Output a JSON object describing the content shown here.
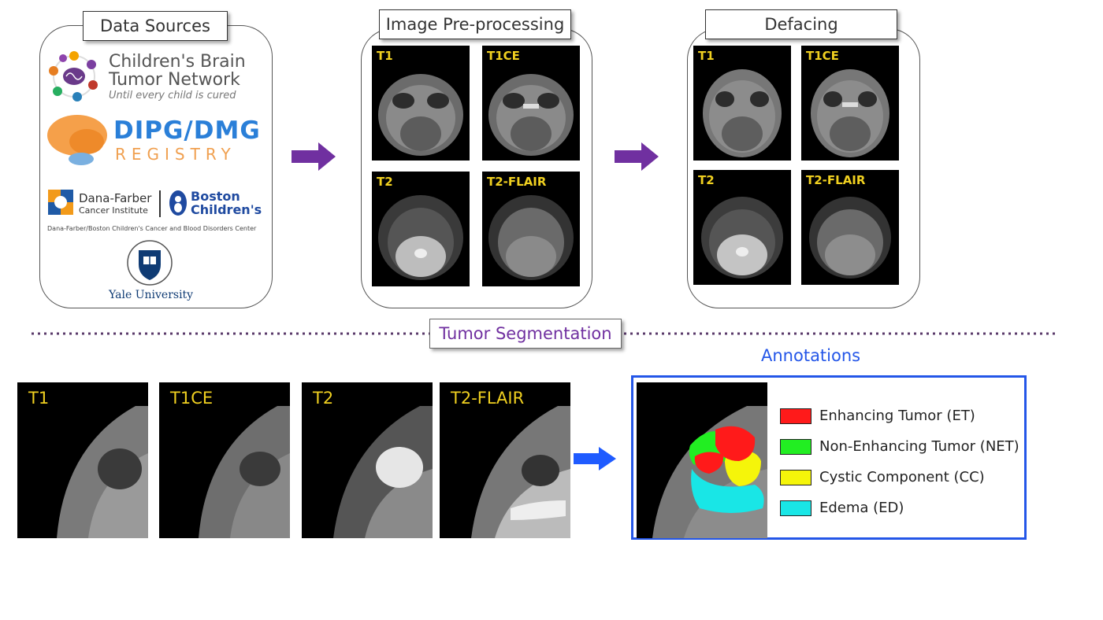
{
  "sections": {
    "data_sources": "Data Sources",
    "preprocessing": "Image Pre-processing",
    "defacing": "Defacing",
    "segmentation": "Tumor Segmentation",
    "annotations": "Annotations"
  },
  "logos": {
    "cbtn_line1": "Children's Brain",
    "cbtn_line2": "Tumor Network",
    "cbtn_tagline": "Until every child is cured",
    "dipg_line1": "DIPG/DMG",
    "dipg_line2": "REGISTRY",
    "danafarber_line1": "Dana-Farber",
    "danafarber_line2": "Cancer Institute",
    "boston_line1": "Boston",
    "boston_line2": "Children's",
    "dfbc_caption": "Dana-Farber/Boston Children's Cancer and Blood Disorders Center",
    "yale": "Yale University"
  },
  "modalities": {
    "t1": "T1",
    "t1ce": "T1CE",
    "t2": "T2",
    "flair": "T2-FLAIR"
  },
  "legend": [
    {
      "label": "Enhancing Tumor (ET)",
      "color": "#ff1a1a"
    },
    {
      "label": "Non-Enhancing Tumor (NET)",
      "color": "#22ee22"
    },
    {
      "label": "Cystic Component (CC)",
      "color": "#f5f50a"
    },
    {
      "label": "Edema (ED)",
      "color": "#19e6e6"
    }
  ],
  "colors": {
    "arrow_purple": "#7030a0",
    "arrow_blue": "#1f5bff",
    "annotations_border": "#2456e8",
    "annotations_title": "#2456e8",
    "dotted_line": "#5a3a6a",
    "modality_label": "#f0d020"
  }
}
